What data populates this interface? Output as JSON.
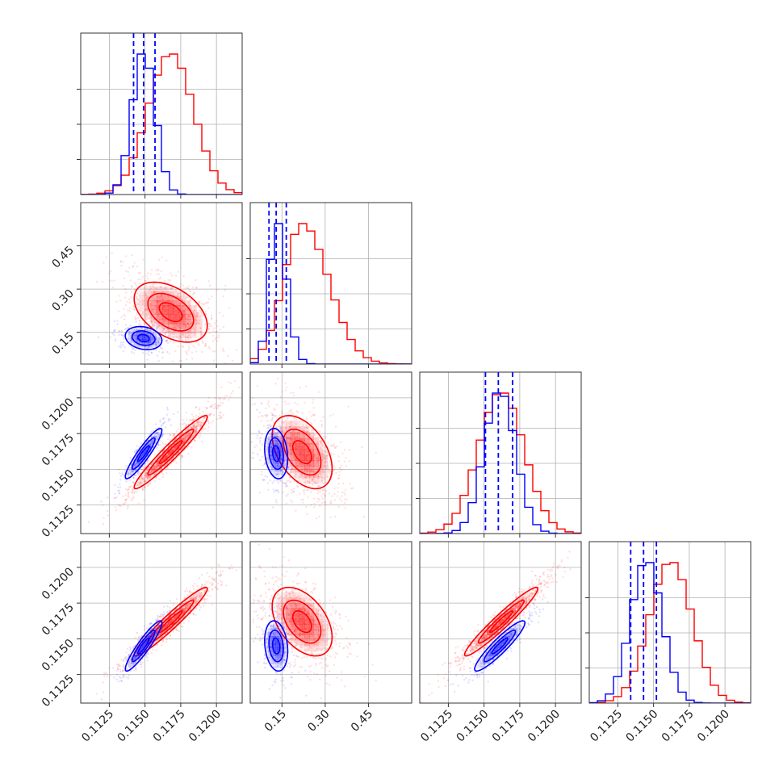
{
  "chart_data": {
    "type": "corner",
    "grid": true,
    "parameters": [
      {
        "range": [
          0.1105,
          0.1218
        ],
        "ticks": [
          0.1125,
          0.115,
          0.1175,
          0.12
        ],
        "tick_labels": [
          "0.1125",
          "0.1150",
          "0.1175",
          "0.1200"
        ]
      },
      {
        "range": [
          0.04,
          0.6
        ],
        "ticks": [
          0.15,
          0.3,
          0.45
        ],
        "tick_labels": [
          "0.15",
          "0.30",
          "0.45"
        ]
      },
      {
        "range": [
          0.1105,
          0.1218
        ],
        "ticks": [
          0.1125,
          0.115,
          0.1175,
          0.12
        ],
        "tick_labels": [
          "0.1125",
          "0.1150",
          "0.1175",
          "0.1200"
        ]
      },
      {
        "range": [
          0.1105,
          0.1218
        ],
        "ticks": [
          0.1125,
          0.115,
          0.1175,
          0.12
        ],
        "tick_labels": [
          "0.1125",
          "0.1150",
          "0.1175",
          "0.1200"
        ]
      }
    ],
    "series": [
      {
        "color": "#ff0000",
        "means": [
          0.1168,
          0.22,
          0.1162,
          0.1162
        ],
        "sigmas": [
          0.0016,
          0.065,
          0.0016,
          0.0015
        ],
        "correlations": [
          [
            1,
            -0.45,
            0.96,
            0.96
          ],
          [
            -0.45,
            1,
            -0.45,
            -0.45
          ],
          [
            0.96,
            -0.45,
            1,
            0.96
          ],
          [
            0.96,
            -0.45,
            0.96,
            1
          ]
        ],
        "quantile_lines": []
      },
      {
        "color": "#0000ff",
        "means": [
          0.1149,
          0.13,
          0.1161,
          0.1145
        ],
        "sigmas": [
          0.0008,
          0.025,
          0.0011,
          0.0011
        ],
        "correlations": [
          [
            1,
            -0.2,
            0.92,
            0.92
          ],
          [
            -0.2,
            1,
            -0.2,
            -0.2
          ],
          [
            0.92,
            -0.2,
            1,
            0.92
          ],
          [
            0.92,
            -0.2,
            0.92,
            1
          ]
        ],
        "quantile_lines": [
          [
            0.1142,
            0.1149,
            0.1157
          ],
          [
            0.105,
            0.13,
            0.165
          ],
          [
            0.1151,
            0.116,
            0.117
          ],
          [
            0.1134,
            0.1143,
            0.1152
          ]
        ]
      }
    ]
  }
}
